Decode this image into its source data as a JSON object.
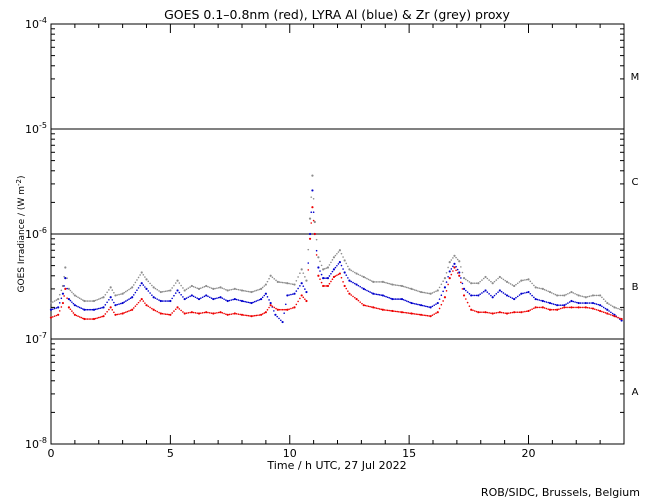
{
  "chart_data": {
    "type": "scatter",
    "title": "GOES 0.1–0.8nm (red), LYRA Al (blue) & Zr (grey) proxy",
    "xlabel": "Time / h UTC, 27 Jul 2022",
    "ylabel": "GOES Irradiance / (W m",
    "ylabel_sup": "-2",
    "ylabel_end": ")",
    "credit": "ROB/SIDC, Brussels, Belgium",
    "scale_y": "log",
    "xlim": [
      0,
      24
    ],
    "ylim": [
      1e-08,
      0.0001
    ],
    "x_ticks": [
      0,
      5,
      10,
      15,
      20
    ],
    "x_tick_labels": [
      "0",
      "5",
      "10",
      "15",
      "20"
    ],
    "y_ticks": [
      {
        "value": 1e-08,
        "base": "10",
        "exp": "-8"
      },
      {
        "value": 1e-07,
        "base": "10",
        "exp": "-7"
      },
      {
        "value": 1e-06,
        "base": "10",
        "exp": "-6"
      },
      {
        "value": 1e-05,
        "base": "10",
        "exp": "-5"
      },
      {
        "value": 0.0001,
        "base": "10",
        "exp": "-4"
      }
    ],
    "reference_lines": [
      1e-07,
      1e-06,
      1e-05
    ],
    "flare_classes": [
      {
        "label": "A",
        "y": 3.2e-08
      },
      {
        "label": "B",
        "y": 3.2e-07
      },
      {
        "label": "C",
        "y": 3.2e-06
      },
      {
        "label": "M",
        "y": 3.2e-05
      }
    ],
    "series": [
      {
        "key": "zr",
        "color": "#8c8c8c",
        "x": [
          0.0,
          0.3,
          0.5,
          0.6,
          0.75,
          1.0,
          1.4,
          1.8,
          2.2,
          2.5,
          2.7,
          3.0,
          3.4,
          3.8,
          4.0,
          4.3,
          4.6,
          5.0,
          5.3,
          5.6,
          5.9,
          6.2,
          6.5,
          6.8,
          7.1,
          7.4,
          7.7,
          8.0,
          8.4,
          8.8,
          9.0,
          9.2,
          9.5,
          9.9,
          10.2,
          10.5,
          10.7,
          10.85,
          10.95,
          11.05,
          11.2,
          11.4,
          11.6,
          11.85,
          12.1,
          12.3,
          12.5,
          12.8,
          13.1,
          13.5,
          13.9,
          14.3,
          14.7,
          15.1,
          15.5,
          15.9,
          16.2,
          16.5,
          16.7,
          16.9,
          17.1,
          17.3,
          17.6,
          17.9,
          18.2,
          18.5,
          18.8,
          19.1,
          19.4,
          19.7,
          20.0,
          20.3,
          20.6,
          20.9,
          21.2,
          21.5,
          21.8,
          22.1,
          22.4,
          22.7,
          23.0,
          23.3,
          23.6,
          23.9
        ],
        "y": [
          2.2e-07,
          2.4e-07,
          3.2e-07,
          4.8e-07,
          3e-07,
          2.6e-07,
          2.3e-07,
          2.3e-07,
          2.5e-07,
          3.1e-07,
          2.6e-07,
          2.7e-07,
          3.1e-07,
          4.3e-07,
          3.7e-07,
          3.1e-07,
          2.8e-07,
          2.9e-07,
          3.6e-07,
          2.9e-07,
          3.2e-07,
          3e-07,
          3.2e-07,
          3e-07,
          3.1e-07,
          2.9e-07,
          3e-07,
          2.9e-07,
          2.8e-07,
          3e-07,
          3.3e-07,
          4e-07,
          3.5e-07,
          3.4e-07,
          3.3e-07,
          4.6e-07,
          3.6e-07,
          1.4e-06,
          3.6e-06,
          1.3e-06,
          6e-07,
          4.6e-07,
          4.8e-07,
          6e-07,
          7e-07,
          5.6e-07,
          4.6e-07,
          4.2e-07,
          3.9e-07,
          3.5e-07,
          3.5e-07,
          3.3e-07,
          3.2e-07,
          3e-07,
          2.8e-07,
          2.7e-07,
          2.9e-07,
          3.8e-07,
          5.4e-07,
          6.2e-07,
          5.5e-07,
          3.8e-07,
          3.4e-07,
          3.4e-07,
          3.9e-07,
          3.4e-07,
          3.9e-07,
          3.5e-07,
          3.2e-07,
          3.6e-07,
          3.7e-07,
          3.1e-07,
          3e-07,
          2.8e-07,
          2.6e-07,
          2.6e-07,
          2.8e-07,
          2.6e-07,
          2.5e-07,
          2.6e-07,
          2.6e-07,
          2.2e-07,
          2e-07,
          1.9e-07
        ]
      },
      {
        "key": "al",
        "color": "#0000cc",
        "x": [
          0.0,
          0.3,
          0.5,
          0.6,
          0.75,
          1.0,
          1.4,
          1.8,
          2.2,
          2.5,
          2.7,
          3.0,
          3.4,
          3.8,
          4.0,
          4.3,
          4.6,
          5.0,
          5.3,
          5.6,
          5.9,
          6.2,
          6.5,
          6.8,
          7.1,
          7.4,
          7.7,
          8.0,
          8.4,
          8.8,
          9.0,
          9.2,
          9.4,
          9.7,
          9.9,
          10.2,
          10.5,
          10.7,
          10.85,
          10.95,
          11.05,
          11.2,
          11.4,
          11.6,
          11.85,
          12.1,
          12.3,
          12.5,
          12.8,
          13.1,
          13.5,
          13.9,
          14.3,
          14.7,
          15.1,
          15.5,
          15.9,
          16.2,
          16.5,
          16.7,
          16.9,
          17.1,
          17.3,
          17.6,
          17.9,
          18.2,
          18.5,
          18.8,
          19.1,
          19.4,
          19.7,
          20.0,
          20.3,
          20.6,
          20.9,
          21.2,
          21.5,
          21.8,
          22.1,
          22.4,
          22.7,
          23.0,
          23.3,
          23.6,
          23.9
        ],
        "y": [
          1.9e-07,
          2e-07,
          2.7e-07,
          3.8e-07,
          2.4e-07,
          2.1e-07,
          1.9e-07,
          1.9e-07,
          2e-07,
          2.5e-07,
          2.1e-07,
          2.2e-07,
          2.5e-07,
          3.4e-07,
          3e-07,
          2.5e-07,
          2.3e-07,
          2.3e-07,
          2.9e-07,
          2.4e-07,
          2.6e-07,
          2.4e-07,
          2.6e-07,
          2.4e-07,
          2.5e-07,
          2.3e-07,
          2.4e-07,
          2.3e-07,
          2.2e-07,
          2.4e-07,
          2.7e-07,
          2.2e-07,
          1.7e-07,
          1.45e-07,
          2.6e-07,
          2.7e-07,
          3.4e-07,
          2.8e-07,
          1e-06,
          2.6e-06,
          1e-06,
          4.8e-07,
          3.8e-07,
          3.8e-07,
          4.6e-07,
          5.4e-07,
          4.3e-07,
          3.6e-07,
          3.3e-07,
          3e-07,
          2.7e-07,
          2.6e-07,
          2.4e-07,
          2.4e-07,
          2.2e-07,
          2.1e-07,
          2e-07,
          2.2e-07,
          3.1e-07,
          4.4e-07,
          5.2e-07,
          4.3e-07,
          3e-07,
          2.6e-07,
          2.6e-07,
          2.9e-07,
          2.5e-07,
          2.9e-07,
          2.6e-07,
          2.4e-07,
          2.7e-07,
          2.8e-07,
          2.4e-07,
          2.3e-07,
          2.2e-07,
          2.1e-07,
          2.1e-07,
          2.3e-07,
          2.2e-07,
          2.2e-07,
          2.2e-07,
          2.1e-07,
          1.9e-07,
          1.7e-07,
          1.5e-07
        ]
      },
      {
        "key": "goes",
        "color": "#ee0000",
        "x": [
          0.0,
          0.3,
          0.5,
          0.6,
          0.75,
          1.0,
          1.4,
          1.8,
          2.2,
          2.5,
          2.7,
          3.0,
          3.4,
          3.8,
          4.0,
          4.3,
          4.6,
          5.0,
          5.3,
          5.6,
          5.9,
          6.2,
          6.5,
          6.8,
          7.1,
          7.4,
          7.7,
          8.0,
          8.4,
          8.8,
          9.0,
          9.2,
          9.5,
          9.9,
          10.2,
          10.5,
          10.7,
          10.85,
          10.95,
          11.05,
          11.2,
          11.4,
          11.6,
          11.85,
          12.1,
          12.3,
          12.5,
          12.8,
          13.1,
          13.5,
          13.9,
          14.3,
          14.7,
          15.1,
          15.5,
          15.9,
          16.2,
          16.5,
          16.7,
          16.9,
          17.1,
          17.3,
          17.6,
          17.9,
          18.2,
          18.5,
          18.8,
          19.1,
          19.4,
          19.7,
          20.0,
          20.3,
          20.6,
          20.9,
          21.2,
          21.5,
          21.8,
          22.1,
          22.4,
          22.7,
          23.0,
          23.3,
          23.6,
          23.9
        ],
        "y": [
          1.6e-07,
          1.7e-07,
          2.2e-07,
          3e-07,
          2e-07,
          1.7e-07,
          1.55e-07,
          1.55e-07,
          1.65e-07,
          2e-07,
          1.7e-07,
          1.75e-07,
          1.9e-07,
          2.4e-07,
          2.1e-07,
          1.9e-07,
          1.75e-07,
          1.7e-07,
          2e-07,
          1.75e-07,
          1.8e-07,
          1.75e-07,
          1.8e-07,
          1.75e-07,
          1.8e-07,
          1.7e-07,
          1.75e-07,
          1.7e-07,
          1.65e-07,
          1.7e-07,
          1.8e-07,
          2.1e-07,
          1.9e-07,
          1.9e-07,
          2e-07,
          2.6e-07,
          2.3e-07,
          9e-07,
          1.8e-06,
          1e-06,
          4e-07,
          3.2e-07,
          3.2e-07,
          3.9e-07,
          4.2e-07,
          3.2e-07,
          2.7e-07,
          2.4e-07,
          2.1e-07,
          2e-07,
          1.9e-07,
          1.85e-07,
          1.8e-07,
          1.75e-07,
          1.7e-07,
          1.65e-07,
          1.8e-07,
          2.5e-07,
          3.8e-07,
          4.8e-07,
          4e-07,
          2.6e-07,
          1.9e-07,
          1.8e-07,
          1.8e-07,
          1.75e-07,
          1.8e-07,
          1.75e-07,
          1.8e-07,
          1.8e-07,
          1.85e-07,
          2e-07,
          2e-07,
          1.9e-07,
          1.9e-07,
          2e-07,
          2e-07,
          2e-07,
          2e-07,
          1.95e-07,
          1.85e-07,
          1.75e-07,
          1.65e-07,
          1.55e-07
        ]
      }
    ]
  }
}
